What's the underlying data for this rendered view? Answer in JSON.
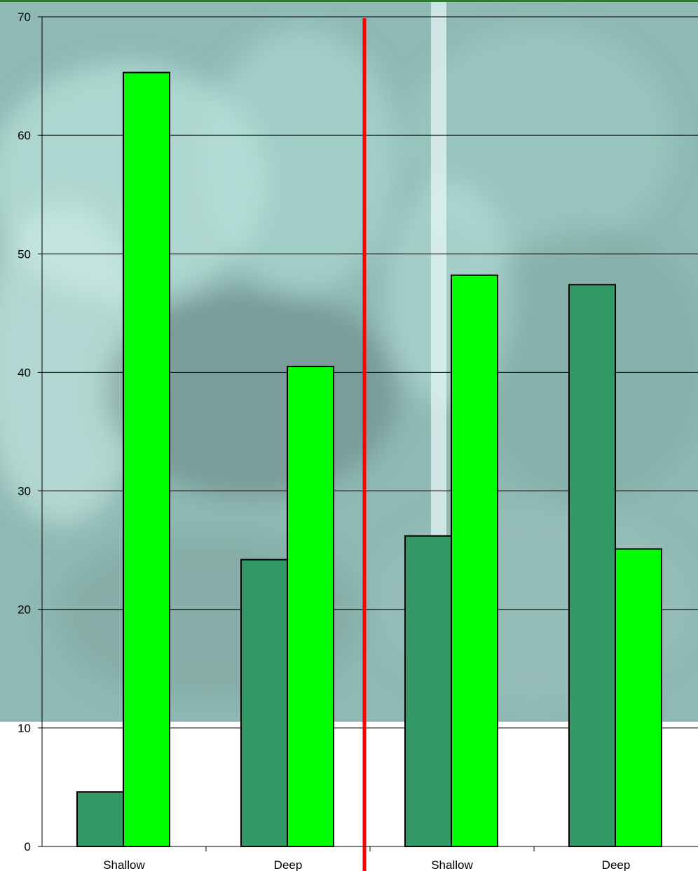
{
  "chart_data": {
    "type": "bar",
    "title": "",
    "xlabel": "",
    "ylabel": "",
    "ylim": [
      0,
      70
    ],
    "yticks": [
      0,
      10,
      20,
      30,
      40,
      50,
      60,
      70
    ],
    "grid": true,
    "legend": "none",
    "categories": [
      "Shallow",
      "Deep",
      "Shallow",
      "Deep"
    ],
    "series": [
      {
        "color": "#339966",
        "values": [
          4.6,
          24.2,
          26.2,
          47.4
        ]
      },
      {
        "color": "#00FF00",
        "values": [
          65.3,
          40.5,
          48.2,
          25.1
        ]
      }
    ],
    "divider": {
      "between_categories": [
        1,
        2
      ],
      "color": "#FF0000"
    }
  },
  "colors": {
    "frame_top": "#2E7D32",
    "gridline": "#000000",
    "photo_background": "#8FB9B4",
    "photo_dark": "#6B8C87",
    "photo_light": "#BDE6E0",
    "bar_stroke": "#000000"
  }
}
